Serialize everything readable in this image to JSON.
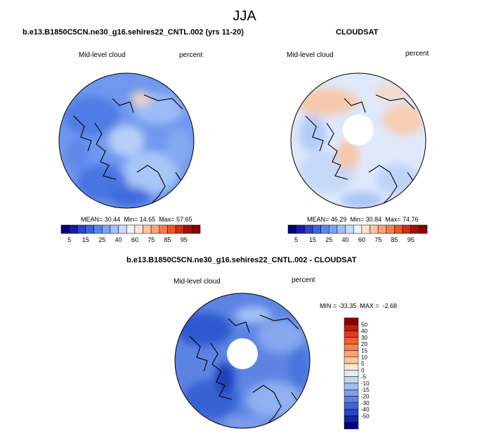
{
  "figure": {
    "season": "JJA"
  },
  "panels": [
    {
      "id": "model",
      "heading": "b.e13.B1850C5CN.ne30_g16.sehires22_CNTL.002 (yrs 11-20)",
      "left_label": "Mid-level cloud",
      "right_label": "percent",
      "stats": {
        "mean": "30.44",
        "min": "14.65",
        "max": "57.65"
      },
      "has_polar_gap": false
    },
    {
      "id": "obs",
      "heading": "CLOUDSAT",
      "left_label": "Mid-level cloud",
      "right_label": "percent",
      "stats": {
        "mean": "46.29",
        "min": "30.84",
        "max": "74.76"
      },
      "has_polar_gap": true
    },
    {
      "id": "diff",
      "heading": "b.e13.B1850C5CN.ne30_g16.sehires22_CNTL.002 - CLOUDSAT",
      "left_label": "Mid-level cloud",
      "right_label": "percent",
      "stats_text": "MIN = -33.35  MAX =  -2.68",
      "has_polar_gap": true
    }
  ],
  "stat_labels": {
    "mean": "MEAN=",
    "min": "Min=",
    "max": "Max="
  },
  "abs_colorbar": {
    "colors": [
      "#000080",
      "#1a1aa6",
      "#2c44c8",
      "#3a63df",
      "#5a86ec",
      "#7ba3f2",
      "#a1c0f7",
      "#c7dbfb",
      "#eaf2fe",
      "#ffe4d2",
      "#fcc4a2",
      "#f9a27b",
      "#f57c51",
      "#ea5628",
      "#d12c10",
      "#a50f05",
      "#8b0000"
    ],
    "tick_labels": [
      "5",
      "15",
      "25",
      "40",
      "60",
      "75",
      "85",
      "95"
    ]
  },
  "diff_colorbar": {
    "colors": [
      "#8b0000",
      "#c2180d",
      "#e03a1e",
      "#f25e33",
      "#f8814c",
      "#fba46f",
      "#fdc69a",
      "#fde6d0",
      "#e1ecfb",
      "#c3d6f7",
      "#a2bdf2",
      "#7f9fe9",
      "#5d82e0",
      "#3e65d6",
      "#2546c3",
      "#1026a6",
      "#000080"
    ],
    "tick_labels": [
      "50",
      "40",
      "30",
      "20",
      "15",
      "10",
      "5",
      "0",
      "-5",
      "-10",
      "-15",
      "-20",
      "-30",
      "-40",
      "-50"
    ]
  }
}
